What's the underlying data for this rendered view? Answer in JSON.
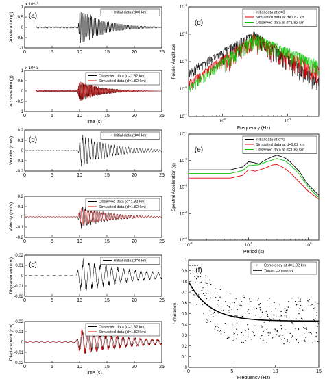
{
  "figure": {
    "panel_letters": [
      "(a)",
      "(b)",
      "(c)",
      "(d)",
      "(e)",
      "(f)"
    ]
  },
  "chart_data": [
    {
      "id": "a1",
      "type": "line",
      "panel": "(a)",
      "title": "",
      "xlabel": "",
      "ylabel": "Acceleration (g)",
      "exponent_label": "x 10^-3",
      "xlim": [
        0,
        25
      ],
      "ylim": [
        -1,
        1
      ],
      "xticks": [
        0,
        5,
        10,
        15,
        20,
        25
      ],
      "yticks": [
        -1,
        -0.5,
        0,
        0.5,
        1
      ],
      "legend": [
        "Initial data (d=0 km)"
      ],
      "legend_placement": "top-right",
      "series": [
        {
          "name": "Initial data (d=0 km)",
          "color": "#000000",
          "envelope": {
            "start": 2,
            "onset": 9.7,
            "peak": 10.1,
            "end": 25,
            "amp": 0.92,
            "decay": 4.5,
            "freq": 4.2,
            "pre_amp": 0.05
          }
        }
      ]
    },
    {
      "id": "a2",
      "type": "line",
      "panel": "",
      "title": "",
      "xlabel": "Time (s)",
      "ylabel": "Acceleration (g)",
      "exponent_label": "x 10^-3",
      "xlim": [
        0,
        25
      ],
      "ylim": [
        -1,
        1
      ],
      "xticks": [
        0,
        5,
        10,
        15,
        20,
        25
      ],
      "yticks": [
        -1,
        -0.5,
        0,
        0.5,
        1
      ],
      "legend": [
        "Observed data (d=1.82 km)",
        "Simulated data (d=1.82 km)"
      ],
      "legend_placement": "top-right",
      "series": [
        {
          "name": "Observed data (d=1.82 km)",
          "color": "#000000",
          "envelope": {
            "start": 2,
            "onset": 9.6,
            "peak": 10.0,
            "end": 25,
            "amp": 0.55,
            "decay": 4.0,
            "freq": 4.5,
            "pre_amp": 0.05
          }
        },
        {
          "name": "Simulated data (d=1.82 km)",
          "color": "#e00000",
          "envelope": {
            "start": 2,
            "onset": 9.6,
            "peak": 10.0,
            "end": 25,
            "amp": 0.55,
            "decay": 4.0,
            "freq": 4.5,
            "pre_amp": 0.05
          }
        }
      ]
    },
    {
      "id": "b1",
      "type": "line",
      "panel": "(b)",
      "title": "",
      "xlabel": "",
      "ylabel": "Velocity (cm/s)",
      "xlim": [
        0,
        25
      ],
      "ylim": [
        -0.2,
        0.2
      ],
      "xticks": [
        0,
        5,
        10,
        15,
        20,
        25
      ],
      "yticks": [
        -0.2,
        -0.1,
        0,
        0.1,
        0.2
      ],
      "legend": [
        "Initial data (d=0 km)"
      ],
      "legend_placement": "top-right",
      "series": [
        {
          "name": "Initial data (d=0 km)",
          "color": "#000000",
          "envelope": {
            "start": 0,
            "onset": 9.7,
            "peak": 10.3,
            "end": 25,
            "amp": 0.17,
            "decay": 5.5,
            "freq": 1.9,
            "pre_amp": 0.004
          }
        }
      ]
    },
    {
      "id": "b2",
      "type": "line",
      "panel": "",
      "title": "",
      "xlabel": "",
      "ylabel": "Velocity (cm/s)",
      "xlim": [
        0,
        25
      ],
      "ylim": [
        -0.2,
        0.2
      ],
      "xticks": [
        0,
        5,
        10,
        15,
        20,
        25
      ],
      "yticks": [
        -0.2,
        -0.1,
        0,
        0.1,
        0.2
      ],
      "legend": [
        "Observed data (d=1.82 km)",
        "Simulated data (d=1.82 km)"
      ],
      "legend_placement": "top-right",
      "series": [
        {
          "name": "Observed data (d=1.82 km)",
          "color": "#000000",
          "envelope": {
            "start": 0,
            "onset": 9.6,
            "peak": 10.3,
            "end": 25,
            "amp": 0.12,
            "decay": 5.0,
            "freq": 1.9,
            "pre_amp": 0.004
          }
        },
        {
          "name": "Simulated data (d=1.82 km)",
          "color": "#e00000",
          "envelope": {
            "start": 0,
            "onset": 9.6,
            "peak": 10.3,
            "end": 25,
            "amp": 0.1,
            "decay": 5.0,
            "freq": 1.9,
            "pre_amp": 0.004
          }
        }
      ]
    },
    {
      "id": "c1",
      "type": "line",
      "panel": "(c)",
      "title": "",
      "xlabel": "",
      "ylabel": "Displacement (cm)",
      "xlim": [
        0,
        25
      ],
      "ylim": [
        -0.02,
        0.02
      ],
      "xticks": [
        0,
        5,
        10,
        15,
        20,
        25
      ],
      "yticks": [
        -0.02,
        -0.01,
        0,
        0.01,
        0.02
      ],
      "legend": [
        "Initial data (d=0 km)"
      ],
      "legend_placement": "top-right",
      "series": [
        {
          "name": "Initial data (d=0 km)",
          "color": "#000000",
          "envelope": {
            "start": 0,
            "onset": 9.3,
            "peak": 10.3,
            "end": 25,
            "amp": 0.018,
            "decay": 9.0,
            "freq": 0.95,
            "pre_amp": 0.0008
          }
        }
      ]
    },
    {
      "id": "c2",
      "type": "line",
      "panel": "",
      "title": "",
      "xlabel": "Time (s)",
      "ylabel": "Displacement (cm)",
      "xlim": [
        0,
        25
      ],
      "ylim": [
        -0.02,
        0.02
      ],
      "xticks": [
        0,
        5,
        10,
        15,
        20,
        25
      ],
      "yticks": [
        -0.02,
        -0.01,
        0,
        0.01,
        0.02
      ],
      "legend": [
        "Observed data (d=1.82 km)",
        "Simulated data (d=1.82 km)"
      ],
      "legend_placement": "top-right",
      "series": [
        {
          "name": "Observed data (d=1.82 km)",
          "color": "#000000",
          "envelope": {
            "start": 0,
            "onset": 9.3,
            "peak": 10.3,
            "end": 25,
            "amp": 0.013,
            "decay": 9.0,
            "freq": 0.95,
            "pre_amp": 0.0008
          }
        },
        {
          "name": "Simulated data (d=1.82 km)",
          "color": "#e00000",
          "envelope": {
            "start": 0,
            "onset": 9.3,
            "peak": 10.3,
            "end": 25,
            "amp": 0.014,
            "decay": 9.0,
            "freq": 0.95,
            "pre_amp": 0.0008
          }
        }
      ]
    },
    {
      "id": "d",
      "type": "line",
      "panel": "(d)",
      "title": "",
      "xlabel": "Frequency (Hz)",
      "ylabel": "Fourier Amplitude",
      "xscale": "log",
      "yscale": "log",
      "xlim": [
        0.3,
        30
      ],
      "ylim": [
        1e-07,
        0.001
      ],
      "xtick_labels": [
        "10^0",
        "10^1"
      ],
      "ytick_labels": [
        "10^-7",
        "10^-6",
        "10^-5",
        "10^-4",
        "10^-3"
      ],
      "legend": [
        "initial data at d=0",
        "Simulated data at d=1.82 km",
        "Observed data at d=1.82 km"
      ],
      "legend_placement": "top-right",
      "series": [
        {
          "name": "initial data at d=0",
          "color": "#000000",
          "spectrum": {
            "f0": 0.5,
            "log_start": -5.3,
            "peak_f": 3.0,
            "log_peak": -3.9,
            "log_end": -5.6,
            "noise": 0.6
          }
        },
        {
          "name": "Simulated data at d=1.82 km",
          "color": "#e00000",
          "spectrum": {
            "f0": 0.5,
            "log_start": -5.7,
            "peak_f": 3.0,
            "log_peak": -4.0,
            "log_end": -5.2,
            "noise": 0.7
          }
        },
        {
          "name": "Observed data at d=1.82 km",
          "color": "#00c800",
          "spectrum": {
            "f0": 0.5,
            "log_start": -5.9,
            "peak_f": 3.0,
            "log_peak": -4.0,
            "log_end": -5.0,
            "noise": 0.55
          }
        }
      ]
    },
    {
      "id": "e",
      "type": "line",
      "panel": "(e)",
      "title": "",
      "xlabel": "Period (s)",
      "ylabel": "Spectral Acceleration (g)",
      "xscale": "log",
      "yscale": "log",
      "xlim": [
        0.01,
        1.5
      ],
      "ylim": [
        1e-05,
        0.1
      ],
      "xtick_labels": [
        "10^-2",
        "10^-1",
        "10^0"
      ],
      "ytick_labels": [
        "10^-5",
        "10^-4",
        "10^-3",
        "10^-2",
        "10^-1"
      ],
      "legend": [
        "initial data at d=0",
        "Simulated data at d=1.82 km",
        "Observed data at d=1.82 km"
      ],
      "legend_placement": "top-right",
      "series": [
        {
          "name": "initial data at d=0",
          "color": "#000000",
          "points": [
            [
              0.01,
              0.0045
            ],
            [
              0.05,
              0.0045
            ],
            [
              0.08,
              0.0058
            ],
            [
              0.1,
              0.009
            ],
            [
              0.12,
              0.0085
            ],
            [
              0.15,
              0.0075
            ],
            [
              0.2,
              0.011
            ],
            [
              0.25,
              0.014
            ],
            [
              0.3,
              0.016
            ],
            [
              0.4,
              0.013
            ],
            [
              0.5,
              0.009
            ],
            [
              0.7,
              0.004
            ],
            [
              1.0,
              0.0012
            ],
            [
              1.5,
              0.0005
            ]
          ]
        },
        {
          "name": "Simulated data at d=1.82 km",
          "color": "#e00000",
          "points": [
            [
              0.01,
              0.0022
            ],
            [
              0.05,
              0.0022
            ],
            [
              0.08,
              0.0028
            ],
            [
              0.1,
              0.0045
            ],
            [
              0.13,
              0.004
            ],
            [
              0.18,
              0.005
            ],
            [
              0.25,
              0.0068
            ],
            [
              0.3,
              0.0072
            ],
            [
              0.4,
              0.0052
            ],
            [
              0.5,
              0.0035
            ],
            [
              0.7,
              0.0016
            ],
            [
              1.0,
              0.0007
            ],
            [
              1.5,
              0.00035
            ]
          ]
        },
        {
          "name": "Observed data at d=1.82 km",
          "color": "#00c800",
          "points": [
            [
              0.01,
              0.0033
            ],
            [
              0.05,
              0.0033
            ],
            [
              0.08,
              0.0042
            ],
            [
              0.1,
              0.0065
            ],
            [
              0.15,
              0.007
            ],
            [
              0.2,
              0.009
            ],
            [
              0.3,
              0.012
            ],
            [
              0.4,
              0.01
            ],
            [
              0.5,
              0.007
            ],
            [
              0.7,
              0.0032
            ],
            [
              1.0,
              0.001
            ],
            [
              1.5,
              0.0004
            ]
          ]
        }
      ]
    },
    {
      "id": "f",
      "type": "scatter",
      "panel": "(f)",
      "title": "",
      "xlabel": "Frequency (Hz)",
      "ylabel": "Coherency",
      "xlim": [
        0,
        15
      ],
      "ylim": [
        0,
        1
      ],
      "xticks": [
        0,
        5,
        10,
        15
      ],
      "yticks": [
        0,
        0.1,
        0.2,
        0.3,
        0.4,
        0.5,
        0.6,
        0.7,
        0.8,
        0.9,
        1
      ],
      "legend": [
        "Coherency at d=1.82 km",
        "Target coherency"
      ],
      "legend_placement": "top-right",
      "series": [
        {
          "name": "Coherency at d=1.82 km",
          "color": "#000000",
          "marker": "dot",
          "scatter": {
            "count": 300,
            "spread": 0.22,
            "base": 0.18,
            "a": 0.62,
            "b": 0.55,
            "seed": 17
          }
        },
        {
          "name": "Target coherency",
          "color": "#000000",
          "marker": "line",
          "curve": {
            "base": 0.43,
            "a": 0.37,
            "b": 0.42
          }
        }
      ]
    }
  ]
}
